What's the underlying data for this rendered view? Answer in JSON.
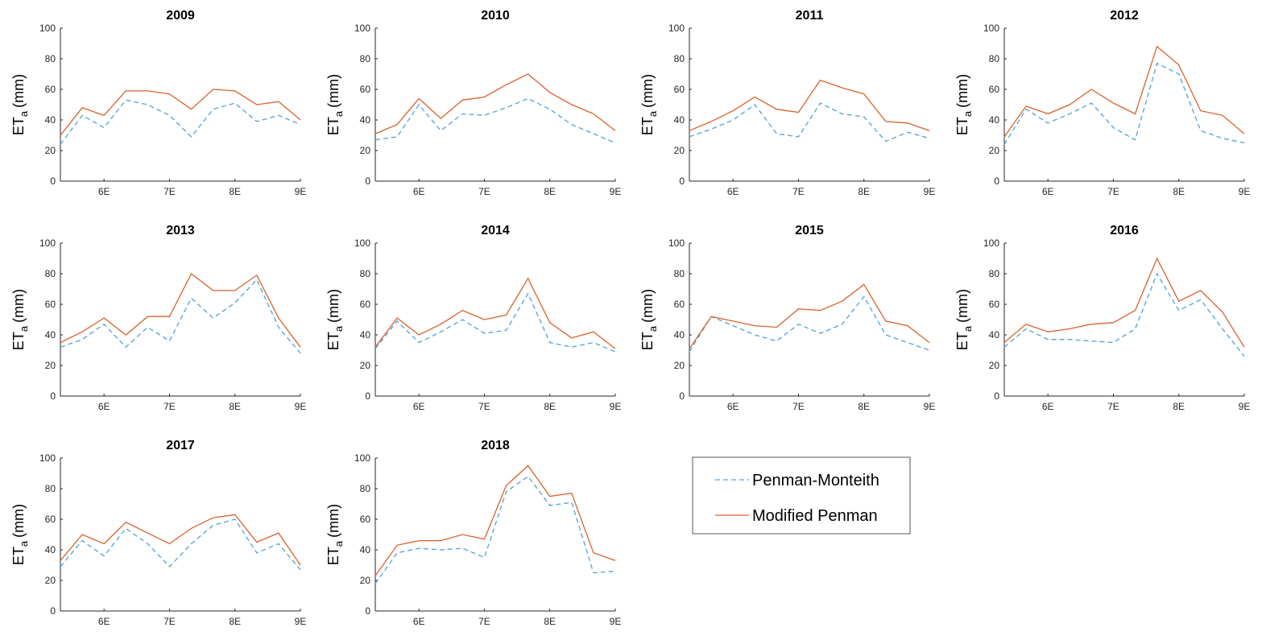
{
  "chart_data": [
    {
      "type": "line",
      "title": "2009",
      "categories": [
        null,
        null,
        "6E",
        null,
        null,
        "7E",
        null,
        null,
        "8E",
        null,
        null,
        "9E"
      ],
      "y_label": "ET",
      "y_label_sub": "a",
      "y_label_unit": "(mm)",
      "ylim": [
        0,
        100
      ],
      "yticks": [
        0,
        20,
        40,
        60,
        80,
        100
      ],
      "series": [
        {
          "name": "Penman-Monteith",
          "color": "#4fa3d6",
          "dashed": true,
          "values": [
            24,
            43,
            35,
            53,
            50,
            43,
            29,
            47,
            51,
            39,
            43,
            37
          ]
        },
        {
          "name": "Modified Penman",
          "color": "#d9622b",
          "dashed": false,
          "values": [
            30,
            48,
            43,
            59,
            59,
            57,
            47,
            60,
            59,
            50,
            52,
            40
          ]
        }
      ]
    },
    {
      "type": "line",
      "title": "2010",
      "categories": [
        null,
        null,
        "6E",
        null,
        null,
        "7E",
        null,
        null,
        "8E",
        null,
        null,
        "9E"
      ],
      "y_label": "ET",
      "y_label_sub": "a",
      "y_label_unit": "(mm)",
      "ylim": [
        0,
        100
      ],
      "yticks": [
        0,
        20,
        40,
        60,
        80,
        100
      ],
      "series": [
        {
          "name": "Penman-Monteith",
          "color": "#4fa3d6",
          "dashed": true,
          "values": [
            27,
            29,
            50,
            33,
            44,
            43,
            48,
            54,
            47,
            37,
            31,
            25
          ]
        },
        {
          "name": "Modified Penman",
          "color": "#d9622b",
          "dashed": false,
          "values": [
            31,
            37,
            54,
            41,
            53,
            55,
            63,
            70,
            58,
            50,
            44,
            33
          ]
        }
      ]
    },
    {
      "type": "line",
      "title": "2011",
      "categories": [
        null,
        null,
        "6E",
        null,
        null,
        "7E",
        null,
        null,
        "8E",
        null,
        null,
        "9E"
      ],
      "y_label": "ET",
      "y_label_sub": "a",
      "y_label_unit": "(mm)",
      "ylim": [
        0,
        100
      ],
      "yticks": [
        0,
        20,
        40,
        60,
        80,
        100
      ],
      "series": [
        {
          "name": "Penman-Monteith",
          "color": "#4fa3d6",
          "dashed": true,
          "values": [
            29,
            34,
            40,
            50,
            31,
            29,
            51,
            44,
            42,
            26,
            32,
            28
          ]
        },
        {
          "name": "Modified Penman",
          "color": "#d9622b",
          "dashed": false,
          "values": [
            33,
            39,
            46,
            55,
            47,
            45,
            66,
            61,
            57,
            39,
            38,
            33
          ]
        }
      ]
    },
    {
      "type": "line",
      "title": "2012",
      "categories": [
        null,
        null,
        "6E",
        null,
        null,
        "7E",
        null,
        null,
        "8E",
        null,
        null,
        "9E"
      ],
      "y_label": "ET",
      "y_label_sub": "a",
      "y_label_unit": "(mm)",
      "ylim": [
        0,
        100
      ],
      "yticks": [
        0,
        20,
        40,
        60,
        80,
        100
      ],
      "series": [
        {
          "name": "Penman-Monteith",
          "color": "#4fa3d6",
          "dashed": true,
          "values": [
            24,
            47,
            38,
            44,
            51,
            35,
            27,
            77,
            70,
            33,
            28,
            25
          ]
        },
        {
          "name": "Modified Penman",
          "color": "#d9622b",
          "dashed": false,
          "values": [
            29,
            49,
            44,
            50,
            60,
            51,
            44,
            88,
            76,
            46,
            43,
            31
          ]
        }
      ]
    },
    {
      "type": "line",
      "title": "2013",
      "categories": [
        null,
        null,
        "6E",
        null,
        null,
        "7E",
        null,
        null,
        "8E",
        null,
        null,
        "9E"
      ],
      "y_label": "ET",
      "y_label_sub": "a",
      "y_label_unit": "(mm)",
      "ylim": [
        0,
        100
      ],
      "yticks": [
        0,
        20,
        40,
        60,
        80,
        100
      ],
      "series": [
        {
          "name": "Penman-Monteith",
          "color": "#4fa3d6",
          "dashed": true,
          "values": [
            32,
            37,
            47,
            32,
            45,
            36,
            64,
            51,
            61,
            76,
            45,
            28
          ]
        },
        {
          "name": "Modified Penman",
          "color": "#d9622b",
          "dashed": false,
          "values": [
            35,
            42,
            51,
            40,
            52,
            52,
            80,
            69,
            69,
            79,
            51,
            32
          ]
        }
      ]
    },
    {
      "type": "line",
      "title": "2014",
      "categories": [
        null,
        null,
        "6E",
        null,
        null,
        "7E",
        null,
        null,
        "8E",
        null,
        null,
        "9E"
      ],
      "y_label": "ET",
      "y_label_sub": "a",
      "y_label_unit": "(mm)",
      "ylim": [
        0,
        100
      ],
      "yticks": [
        0,
        20,
        40,
        60,
        80,
        100
      ],
      "series": [
        {
          "name": "Penman-Monteith",
          "color": "#4fa3d6",
          "dashed": true,
          "values": [
            31,
            49,
            35,
            42,
            50,
            41,
            43,
            67,
            35,
            32,
            35,
            29
          ]
        },
        {
          "name": "Modified Penman",
          "color": "#d9622b",
          "dashed": false,
          "values": [
            32,
            51,
            40,
            47,
            56,
            50,
            53,
            77,
            48,
            38,
            42,
            31
          ]
        }
      ]
    },
    {
      "type": "line",
      "title": "2015",
      "categories": [
        null,
        null,
        "6E",
        null,
        null,
        "7E",
        null,
        null,
        "8E",
        null,
        null,
        "9E"
      ],
      "y_label": "ET",
      "y_label_sub": "a",
      "y_label_unit": "(mm)",
      "ylim": [
        0,
        100
      ],
      "yticks": [
        0,
        20,
        40,
        60,
        80,
        100
      ],
      "series": [
        {
          "name": "Penman-Monteith",
          "color": "#4fa3d6",
          "dashed": true,
          "values": [
            29,
            52,
            46,
            40,
            36,
            47,
            41,
            47,
            65,
            40,
            35,
            30
          ]
        },
        {
          "name": "Modified Penman",
          "color": "#d9622b",
          "dashed": false,
          "values": [
            31,
            52,
            49,
            46,
            45,
            57,
            56,
            62,
            73,
            49,
            46,
            35
          ]
        }
      ]
    },
    {
      "type": "line",
      "title": "2016",
      "categories": [
        null,
        null,
        "6E",
        null,
        null,
        "7E",
        null,
        null,
        "8E",
        null,
        null,
        "9E"
      ],
      "y_label": "ET",
      "y_label_sub": "a",
      "y_label_unit": "(mm)",
      "ylim": [
        0,
        100
      ],
      "yticks": [
        0,
        20,
        40,
        60,
        80,
        100
      ],
      "series": [
        {
          "name": "Penman-Monteith",
          "color": "#4fa3d6",
          "dashed": true,
          "values": [
            32,
            44,
            37,
            37,
            36,
            35,
            44,
            80,
            56,
            63,
            44,
            26
          ]
        },
        {
          "name": "Modified Penman",
          "color": "#d9622b",
          "dashed": false,
          "values": [
            35,
            47,
            42,
            44,
            47,
            48,
            56,
            90,
            62,
            69,
            55,
            32
          ]
        }
      ]
    },
    {
      "type": "line",
      "title": "2017",
      "categories": [
        null,
        null,
        "6E",
        null,
        null,
        "7E",
        null,
        null,
        "8E",
        null,
        null,
        "9E"
      ],
      "y_label": "ET",
      "y_label_sub": "a",
      "y_label_unit": "(mm)",
      "ylim": [
        0,
        100
      ],
      "yticks": [
        0,
        20,
        40,
        60,
        80,
        100
      ],
      "series": [
        {
          "name": "Penman-Monteith",
          "color": "#4fa3d6",
          "dashed": true,
          "values": [
            29,
            46,
            36,
            54,
            44,
            29,
            44,
            56,
            60,
            38,
            44,
            27
          ]
        },
        {
          "name": "Modified Penman",
          "color": "#d9622b",
          "dashed": false,
          "values": [
            33,
            50,
            44,
            58,
            51,
            44,
            54,
            61,
            63,
            45,
            51,
            30
          ]
        }
      ]
    },
    {
      "type": "line",
      "title": "2018",
      "categories": [
        null,
        null,
        "6E",
        null,
        null,
        "7E",
        null,
        null,
        "8E",
        null,
        null,
        "9E"
      ],
      "y_label": "ET",
      "y_label_sub": "a",
      "y_label_unit": "(mm)",
      "ylim": [
        0,
        100
      ],
      "yticks": [
        0,
        20,
        40,
        60,
        80,
        100
      ],
      "series": [
        {
          "name": "Penman-Monteith",
          "color": "#4fa3d6",
          "dashed": true,
          "values": [
            18,
            38,
            41,
            40,
            41,
            35,
            78,
            88,
            69,
            71,
            25,
            26
          ]
        },
        {
          "name": "Modified Penman",
          "color": "#d9622b",
          "dashed": false,
          "values": [
            23,
            43,
            46,
            46,
            50,
            47,
            82,
            95,
            75,
            77,
            38,
            33
          ]
        }
      ]
    }
  ]
}
